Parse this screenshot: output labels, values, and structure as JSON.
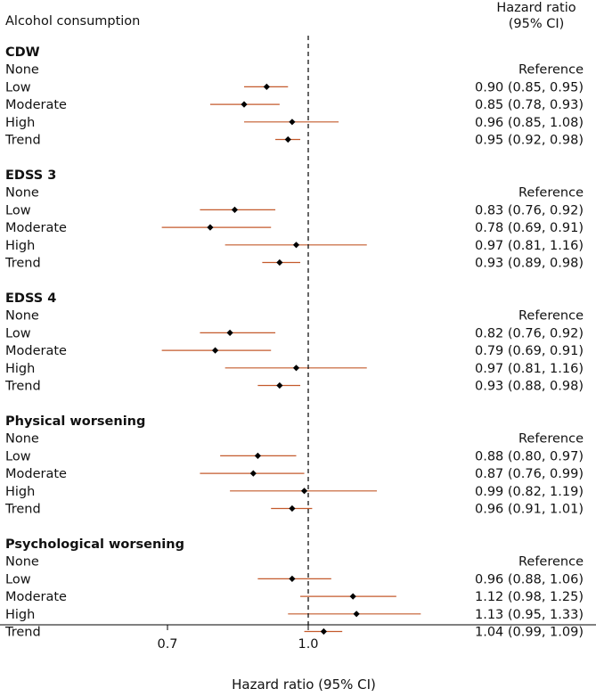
{
  "header": {
    "left": "Alcohol consumption",
    "right_line1": "Hazard ratio",
    "right_line2": "(95% CI)"
  },
  "colors": {
    "ci_line": "#c45a2c",
    "point": "#000000",
    "text": "#111111",
    "axis": "#000000"
  },
  "chart_data": {
    "type": "forest",
    "xlabel": "Hazard ratio (95% CI)",
    "x_ticks": [
      "0.7",
      "1.0"
    ],
    "x_tick_values": [
      0.7,
      1.0
    ],
    "reference_line": 1.0,
    "groups": [
      {
        "title": "CDW",
        "rows": [
          {
            "label": "None",
            "text": "Reference"
          },
          {
            "label": "Low",
            "text": "0.90 (0.85, 0.95)",
            "hr": 0.9,
            "lo": 0.85,
            "hi": 0.95
          },
          {
            "label": "Moderate",
            "text": "0.85 (0.78, 0.93)",
            "hr": 0.85,
            "lo": 0.78,
            "hi": 0.93
          },
          {
            "label": "High",
            "text": "0.96 (0.85, 1.08)",
            "hr": 0.96,
            "lo": 0.85,
            "hi": 1.08
          },
          {
            "label": "Trend",
            "text": "0.95 (0.92, 0.98)",
            "hr": 0.95,
            "lo": 0.92,
            "hi": 0.98
          }
        ]
      },
      {
        "title": "EDSS 3",
        "rows": [
          {
            "label": "None",
            "text": "Reference"
          },
          {
            "label": "Low",
            "text": "0.83 (0.76, 0.92)",
            "hr": 0.83,
            "lo": 0.76,
            "hi": 0.92
          },
          {
            "label": "Moderate",
            "text": "0.78 (0.69, 0.91)",
            "hr": 0.78,
            "lo": 0.69,
            "hi": 0.91
          },
          {
            "label": "High",
            "text": "0.97 (0.81, 1.16)",
            "hr": 0.97,
            "lo": 0.81,
            "hi": 1.16
          },
          {
            "label": "Trend",
            "text": "0.93 (0.89, 0.98)",
            "hr": 0.93,
            "lo": 0.89,
            "hi": 0.98
          }
        ]
      },
      {
        "title": "EDSS 4",
        "rows": [
          {
            "label": "None",
            "text": "Reference"
          },
          {
            "label": "Low",
            "text": "0.82 (0.76, 0.92)",
            "hr": 0.82,
            "lo": 0.76,
            "hi": 0.92
          },
          {
            "label": "Moderate",
            "text": "0.79 (0.69, 0.91)",
            "hr": 0.79,
            "lo": 0.69,
            "hi": 0.91
          },
          {
            "label": "High",
            "text": "0.97 (0.81, 1.16)",
            "hr": 0.97,
            "lo": 0.81,
            "hi": 1.16
          },
          {
            "label": "Trend",
            "text": "0.93 (0.88, 0.98)",
            "hr": 0.93,
            "lo": 0.88,
            "hi": 0.98
          }
        ]
      },
      {
        "title": "Physical worsening",
        "rows": [
          {
            "label": "None",
            "text": "Reference"
          },
          {
            "label": "Low",
            "text": "0.88 (0.80, 0.97)",
            "hr": 0.88,
            "lo": 0.8,
            "hi": 0.97
          },
          {
            "label": "Moderate",
            "text": "0.87 (0.76, 0.99)",
            "hr": 0.87,
            "lo": 0.76,
            "hi": 0.99
          },
          {
            "label": "High",
            "text": "0.99 (0.82, 1.19)",
            "hr": 0.99,
            "lo": 0.82,
            "hi": 1.19
          },
          {
            "label": "Trend",
            "text": "0.96 (0.91, 1.01)",
            "hr": 0.96,
            "lo": 0.91,
            "hi": 1.01
          }
        ]
      },
      {
        "title": "Psychological worsening",
        "rows": [
          {
            "label": "None",
            "text": "Reference"
          },
          {
            "label": "Low",
            "text": "0.96 (0.88, 1.06)",
            "hr": 0.96,
            "lo": 0.88,
            "hi": 1.06
          },
          {
            "label": "Moderate",
            "text": "1.12 (0.98, 1.25)",
            "hr": 1.12,
            "lo": 0.98,
            "hi": 1.25
          },
          {
            "label": "High",
            "text": "1.13 (0.95, 1.33)",
            "hr": 1.13,
            "lo": 0.95,
            "hi": 1.33
          },
          {
            "label": "Trend",
            "text": "1.04 (0.99, 1.09)",
            "hr": 1.04,
            "lo": 0.99,
            "hi": 1.09
          }
        ]
      }
    ]
  }
}
